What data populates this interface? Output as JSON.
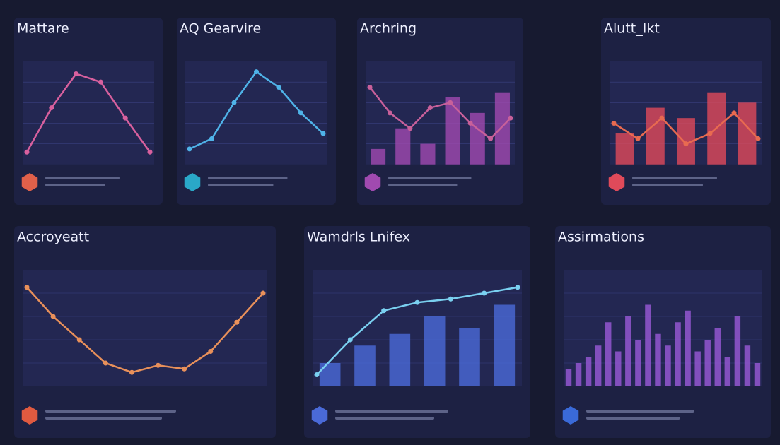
{
  "panels": [
    {
      "title": "Mattare",
      "type": "line",
      "ylim": [
        0,
        100
      ],
      "color": "#d8609e",
      "accent": "#e0604a",
      "values": [
        12,
        55,
        88,
        80,
        45,
        12
      ]
    },
    {
      "title": "AQ Gearvire",
      "type": "line",
      "ylim": [
        0,
        100
      ],
      "color": "#4fb3e8",
      "accent": "#2aa8c8",
      "values": [
        15,
        25,
        60,
        90,
        75,
        50,
        30
      ]
    },
    {
      "title": "Archring",
      "type": "line",
      "ylim": [
        0,
        100
      ],
      "color": "#c8609a",
      "accent": "#a04ab0",
      "values": [
        75,
        50,
        35,
        55,
        60,
        40,
        25,
        45
      ],
      "bars": [
        15,
        35,
        20,
        65,
        50,
        70
      ]
    },
    {
      "title": "Alutt_Ikt",
      "type": "line",
      "ylim": [
        0,
        100
      ],
      "color": "#e86a50",
      "accent": "#e04a5a",
      "values": [
        40,
        25,
        45,
        20,
        30,
        50,
        25
      ],
      "bars": [
        30,
        55,
        45,
        70,
        60
      ]
    },
    {
      "title": "Accroyeatt",
      "type": "line",
      "ylim": [
        0,
        100
      ],
      "color": "#e8905a",
      "accent": "#e05a40",
      "values": [
        85,
        60,
        40,
        20,
        12,
        18,
        15,
        30,
        55,
        80
      ]
    },
    {
      "title": "Wamdrls  Lnifex",
      "type": "line",
      "ylim": [
        0,
        100
      ],
      "color": "#7ad0f0",
      "accent": "#4a6ad8",
      "values": [
        10,
        40,
        65,
        72,
        75,
        80,
        85
      ],
      "bars": [
        20,
        35,
        45,
        60,
        50,
        70
      ]
    },
    {
      "title": "Assirmations",
      "type": "bar",
      "ylim": [
        0,
        100
      ],
      "color": "#9a5ad8",
      "accent": "#3a6ad8",
      "values": [
        15,
        20,
        25,
        35,
        55,
        30,
        60,
        40,
        70,
        45,
        35,
        55,
        65,
        30,
        40,
        50,
        25,
        60,
        35,
        20
      ]
    }
  ]
}
